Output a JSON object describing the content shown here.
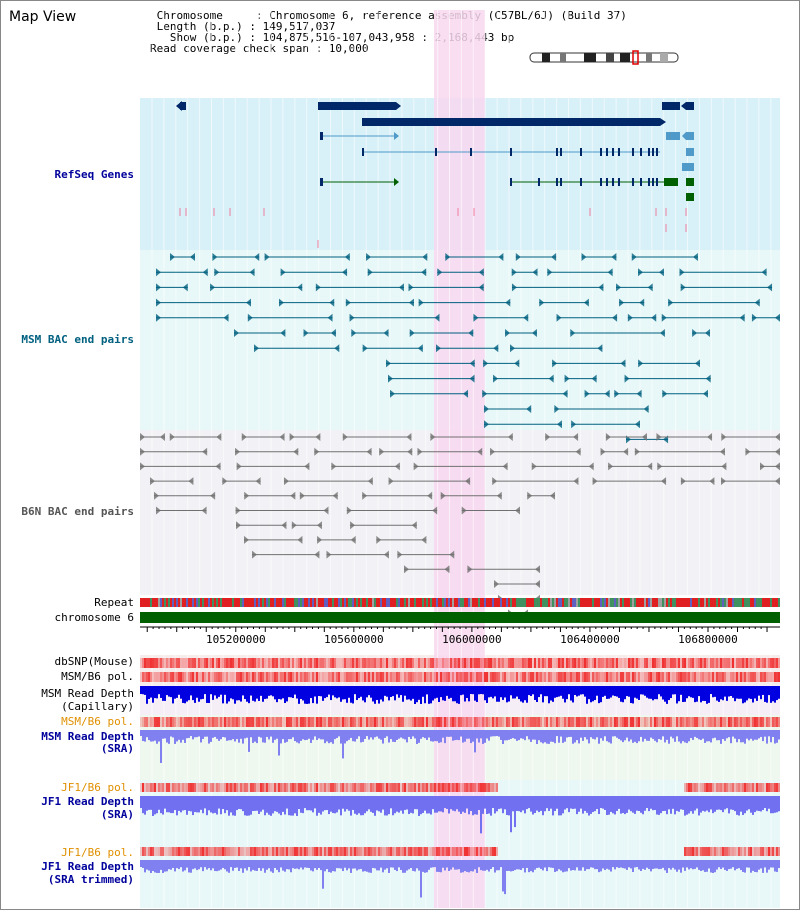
{
  "window": {
    "title": "Map View"
  },
  "header": {
    "lines": [
      " Chromosome     : Chromosome 6, reference assembly (C57BL/6J) (Build 37)",
      " Length (b.p.) : 149,517,037",
      "   Show (b.p.) : 104,875,516-107,043,958 : 2,168,443 bp",
      "Read coverage check span : 10,000"
    ]
  },
  "colors": {
    "refseq_bg": "#d8f0f8",
    "msm_bg": "#e8f8f8",
    "b6n_bg": "#f2f2f6",
    "highlight": "#f8d8f0",
    "gene_dark": "#002868",
    "gene_mid": "#4f9ac8",
    "gene_green": "#006000",
    "bac_teal": "#006080",
    "bac_gray": "#707070",
    "chrom_green": "#006000",
    "pol_red": "#f04040",
    "depth_blue": "#0000e0",
    "depth_light": "#8080f0",
    "label_blue": "#00009c",
    "label_teal": "#006080",
    "label_orange": "#e09000"
  },
  "tracks": {
    "refseq": "RefSeq Genes",
    "msm_bac": "MSM BAC end pairs",
    "b6n_bac": "B6N BAC end pairs",
    "repeat": "Repeat",
    "chromosome": "chromosome 6",
    "dbsnp": "dbSNP(Mouse)",
    "msm_b6_pol_1": "MSM/B6 pol.",
    "msm_depth_cap_1": "MSM Read Depth",
    "msm_depth_cap_2": "(Capillary)",
    "msm_b6_pol_2": "MSM/B6 pol.",
    "msm_depth_sra_1": "MSM Read Depth",
    "msm_depth_sra_2": "(SRA)",
    "jf1_b6_pol_1": "JF1/B6 pol.",
    "jf1_depth_sra_1": "JF1 Read Depth",
    "jf1_depth_sra_2": "(SRA)",
    "jf1_b6_pol_2": "JF1/B6 pol.",
    "jf1_depth_trim_1": "JF1 Read Depth",
    "jf1_depth_trim_2": "(SRA trimmed)"
  },
  "axis": {
    "ticks": [
      "105200000",
      "105600000",
      "106000000",
      "106400000",
      "106800000"
    ],
    "tick_values": [
      105200000,
      105600000,
      106000000,
      106400000,
      106800000
    ],
    "range": [
      104875516,
      107043958
    ]
  }
}
